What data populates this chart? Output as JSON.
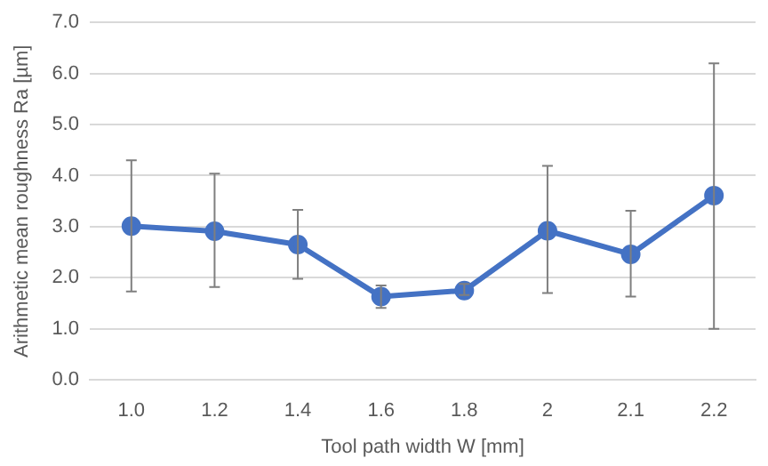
{
  "chart_data": {
    "type": "line",
    "xlabel": "Tool path width W [mm]",
    "ylabel": "Arithmetic mean roughness Ra [µm]",
    "categories": [
      "1.0",
      "1.2",
      "1.4",
      "1.6",
      "1.8",
      "2",
      "2.1",
      "2.2"
    ],
    "series": [
      {
        "color": "#4472c4",
        "values": [
          3.01,
          2.91,
          2.65,
          1.63,
          1.75,
          2.92,
          2.46,
          3.61
        ],
        "errors": [
          [
            1.73,
            4.3
          ],
          [
            1.82,
            4.04
          ],
          [
            1.98,
            3.33
          ],
          [
            1.41,
            1.85
          ],
          [
            1.66,
            1.88
          ],
          [
            1.7,
            4.19
          ],
          [
            1.63,
            3.31
          ],
          [
            1.0,
            6.2
          ]
        ]
      }
    ],
    "ylim": [
      0,
      7
    ],
    "yticks": [
      {
        "value": 0,
        "label": "0.0"
      },
      {
        "value": 1,
        "label": "1.0"
      },
      {
        "value": 2,
        "label": "2.0"
      },
      {
        "value": 3,
        "label": "3.0"
      },
      {
        "value": 4,
        "label": "4.0"
      },
      {
        "value": 5,
        "label": "5.0"
      },
      {
        "value": 6,
        "label": "6.0"
      },
      {
        "value": 7,
        "label": "7.0"
      }
    ],
    "grid": "y",
    "marker": "circle",
    "line_style": "solid",
    "legend": false
  }
}
